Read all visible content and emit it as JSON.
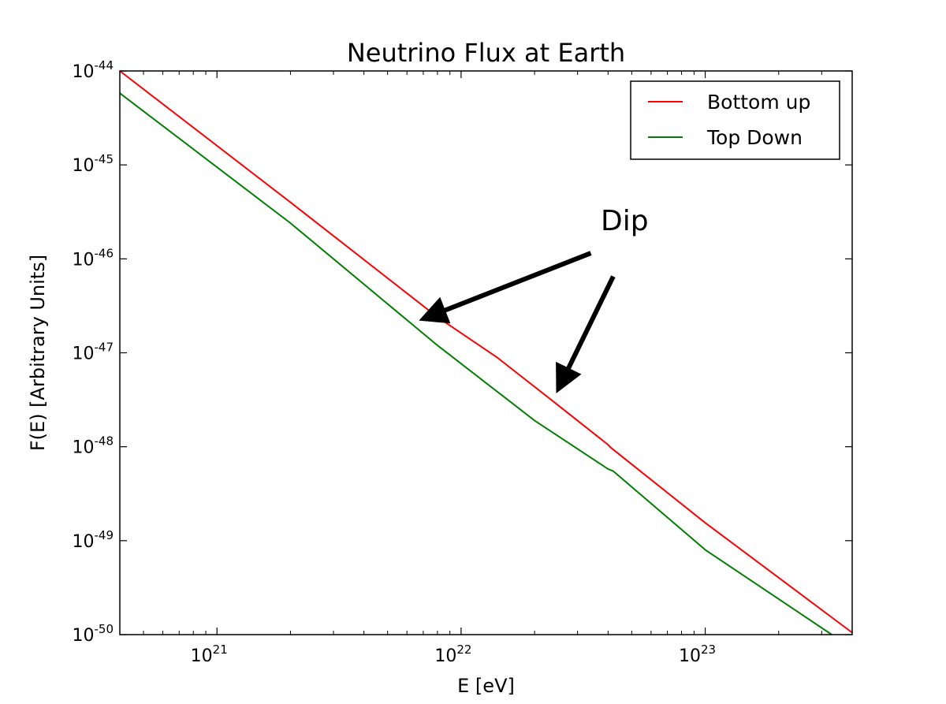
{
  "chart_data": {
    "type": "line",
    "title": "Neutrino Flux at Earth",
    "xlabel": "E [eV]",
    "ylabel": "F(E) [Arbitrary Units]",
    "xscale": "log",
    "yscale": "log",
    "xlim": [
      4e+20,
      4e+23
    ],
    "ylim": [
      1e-50,
      1e-44
    ],
    "xticks": [
      {
        "value": 1e+21,
        "base": "10",
        "exp": "21"
      },
      {
        "value": 1e+22,
        "base": "10",
        "exp": "22"
      },
      {
        "value": 1e+23,
        "base": "10",
        "exp": "23"
      }
    ],
    "yticks": [
      {
        "value": 1e-44,
        "base": "10",
        "exp": "-44"
      },
      {
        "value": 1e-45,
        "base": "10",
        "exp": "-45"
      },
      {
        "value": 1e-46,
        "base": "10",
        "exp": "-46"
      },
      {
        "value": 1e-47,
        "base": "10",
        "exp": "-47"
      },
      {
        "value": 1e-48,
        "base": "10",
        "exp": "-48"
      },
      {
        "value": 1e-49,
        "base": "10",
        "exp": "-49"
      },
      {
        "value": 1e-50,
        "base": "10",
        "exp": "-50"
      }
    ],
    "grid": false,
    "legend_position": "top-right",
    "series": [
      {
        "name": "Bottom up",
        "color": "#ff0000",
        "x": [
          4e+20,
          2e+21,
          8e+21,
          1.4e+22,
          2.4e+22,
          4e+22,
          4.1e+22,
          1e+23,
          4e+23
        ],
        "y": [
          1e-44,
          4e-46,
          2.4e-47,
          9e-48,
          3e-48,
          1.05e-48,
          9.8e-49,
          1.55e-49,
          1.05e-50
        ]
      },
      {
        "name": "Top Down",
        "color": "#008000",
        "x": [
          4e+20,
          2e+21,
          8e+21,
          2e+22,
          4e+22,
          4.2e+22,
          1e+23,
          3.3e+23
        ],
        "y": [
          5.8e-45,
          2.4e-46,
          1.2e-47,
          1.9e-48,
          5.8e-49,
          5.5e-49,
          8e-50,
          1e-50
        ]
      }
    ],
    "annotations": [
      {
        "text": "Dip",
        "arrows": [
          {
            "from": [
              3.4e+22,
              1.15e-46
            ],
            "to": [
              7e+21,
              2.3e-47
            ]
          },
          {
            "from": [
              4.2e+22,
              6.5e-47
            ],
            "to": [
              2.5e+22,
              4.1e-48
            ]
          }
        ]
      }
    ]
  }
}
